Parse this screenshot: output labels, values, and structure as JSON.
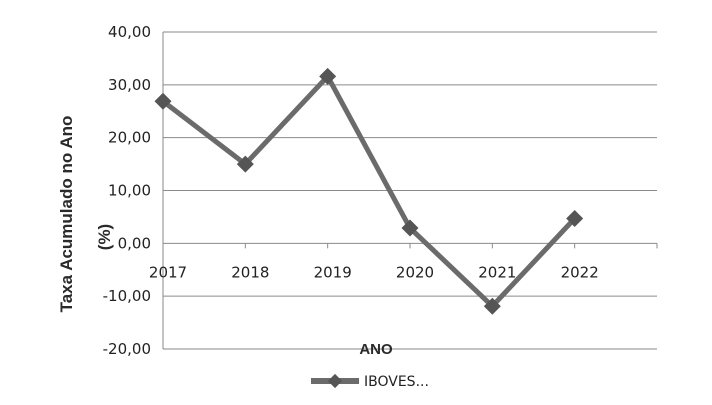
{
  "chart_data": {
    "type": "line",
    "title": "",
    "xlabel": "ANO",
    "ylabel": "Taxa Acumulado no Ano (%)",
    "ylabel_lines": [
      "Taxa Acumulado no Ano",
      "(%)"
    ],
    "ylim": [
      -20,
      40
    ],
    "yticks": [
      40,
      30,
      20,
      10,
      0,
      -10,
      -20
    ],
    "ytick_labels": [
      "40,00",
      "30,00",
      "20,00",
      "10,00",
      "0,00",
      "-10,00",
      "-20,00"
    ],
    "categories": [
      "2017",
      "2018",
      "2019",
      "2020",
      "2021",
      "2022"
    ],
    "series": [
      {
        "name": "IBOVES...",
        "values": [
          26.9,
          15.0,
          31.6,
          2.9,
          -11.9,
          4.7
        ],
        "color": "#6b6b6b"
      }
    ],
    "grid": true,
    "legend_position": "bottom"
  }
}
